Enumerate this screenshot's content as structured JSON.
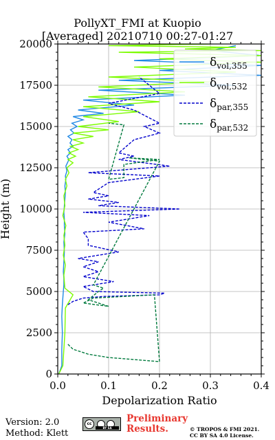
{
  "chart_data": {
    "type": "line",
    "title": "PollyXT_FMI at Kuopio",
    "subtitle": "[Averaged] 20210710 00:27-01:27",
    "xlabel": "Depolarization Ratio",
    "ylabel": "Height (m)",
    "xlim": [
      0,
      0.4
    ],
    "ylim": [
      0,
      20000
    ],
    "xticks": [
      "0.0",
      "0.1",
      "0.2",
      "0.3",
      "0.4"
    ],
    "yticks": [
      "0",
      "2500",
      "5000",
      "7500",
      "10000",
      "12500",
      "15000",
      "17500",
      "20000"
    ],
    "grid": true,
    "legend_placement": "top-right",
    "legend": [
      {
        "base": "δ",
        "sub": "vol,355",
        "color": "#1e88e5",
        "style": "solid"
      },
      {
        "base": "δ",
        "sub": "vol,532",
        "color": "#7cfc00",
        "style": "solid"
      },
      {
        "base": "δ",
        "sub": "par,355",
        "color": "#0000cc",
        "style": "dashed"
      },
      {
        "base": "δ",
        "sub": "par,532",
        "color": "#007a3d",
        "style": "dashed"
      }
    ],
    "series": [
      {
        "name": "δvol,355",
        "color": "#1e88e5",
        "style": "solid",
        "x": [
          0.002,
          0.008,
          0.008,
          0.009,
          0.008,
          0.009,
          0.01,
          0.011,
          0.012,
          0.012,
          0.011,
          0.012,
          0.013,
          0.012,
          0.014,
          0.013,
          0.013,
          0.012,
          0.013,
          0.014,
          0.015,
          0.014,
          0.016,
          0.015,
          0.018,
          0.016,
          0.019,
          0.022,
          0.018,
          0.025,
          0.02,
          0.03,
          0.024,
          0.028,
          0.02,
          0.032,
          0.025,
          0.038,
          0.028,
          0.05,
          0.03,
          0.09,
          0.04,
          0.15,
          0.05,
          0.25,
          0.08,
          0.35,
          0.12,
          0.4,
          0.2,
          0.4,
          0.15,
          0.4,
          0.3,
          0.35
        ],
        "y": [
          0,
          500,
          1500,
          2500,
          3500,
          4200,
          4600,
          5000,
          5400,
          5800,
          6200,
          6800,
          7400,
          8000,
          8500,
          9000,
          9400,
          9800,
          10200,
          10600,
          11000,
          11400,
          11800,
          12000,
          12300,
          12600,
          12800,
          13000,
          13200,
          13400,
          13600,
          13800,
          14000,
          14200,
          14400,
          14600,
          14800,
          15000,
          15200,
          15400,
          15600,
          15800,
          16000,
          16300,
          16600,
          16900,
          17200,
          17500,
          17800,
          18100,
          18400,
          18700,
          19000,
          19300,
          19600,
          19900
        ]
      },
      {
        "name": "δvol,532",
        "color": "#7cfc00",
        "style": "solid",
        "x": [
          0.002,
          0.01,
          0.012,
          0.014,
          0.015,
          0.03,
          0.014,
          0.013,
          0.012,
          0.015,
          0.011,
          0.014,
          0.012,
          0.016,
          0.01,
          0.014,
          0.012,
          0.018,
          0.015,
          0.022,
          0.018,
          0.03,
          0.02,
          0.035,
          0.022,
          0.04,
          0.025,
          0.05,
          0.03,
          0.07,
          0.03,
          0.1,
          0.04,
          0.12,
          0.05,
          0.16,
          0.05,
          0.2,
          0.06,
          0.25,
          0.08,
          0.3,
          0.1,
          0.35,
          0.15,
          0.4,
          0.2,
          0.4,
          0.12,
          0.4,
          0.25,
          0.35,
          0.1,
          0.3
        ],
        "y": [
          0,
          500,
          1500,
          2500,
          4000,
          4800,
          5200,
          5600,
          6000,
          6600,
          7200,
          7800,
          8400,
          9000,
          9600,
          10200,
          10800,
          11400,
          11800,
          12200,
          12500,
          12800,
          13000,
          13200,
          13400,
          13600,
          13800,
          14000,
          14200,
          14400,
          14600,
          14800,
          15000,
          15300,
          15600,
          15900,
          16200,
          16500,
          16800,
          17100,
          17400,
          17700,
          18000,
          18300,
          18600,
          18900,
          19100,
          19300,
          19500,
          19600,
          19700,
          19800,
          19900,
          20000
        ]
      },
      {
        "name": "δpar,355",
        "color": "#0000cc",
        "style": "dashed",
        "x": [
          0.02,
          0.03,
          0.05,
          0.09,
          0.2,
          0.21,
          0.07,
          0.05,
          0.11,
          0.05,
          0.08,
          0.05,
          0.08,
          0.04,
          0.12,
          0.06,
          0.06,
          0.05,
          0.17,
          0.1,
          0.18,
          0.05,
          0.24,
          0.08,
          0.12,
          0.06,
          0.1,
          0.07,
          0.08,
          0.1,
          0.2,
          0.06,
          0.22,
          0.12,
          0.15,
          0.12,
          0.15,
          0.2,
          0.17,
          0.2,
          0.15,
          0.1,
          0.2,
          0.16
        ],
        "y": [
          4200,
          4400,
          4600,
          4700,
          4800,
          4900,
          5000,
          5300,
          5600,
          5900,
          6200,
          6500,
          6800,
          7000,
          7400,
          7800,
          8200,
          8600,
          8800,
          9200,
          9600,
          9800,
          10000,
          10200,
          10400,
          10600,
          10800,
          11000,
          11200,
          11600,
          12000,
          12200,
          12600,
          13000,
          13200,
          13400,
          14200,
          14600,
          15000,
          15200,
          16000,
          16400,
          17000,
          18000
        ]
      },
      {
        "name": "δpar,532",
        "color": "#007a3d",
        "style": "dashed",
        "x": [
          0.02,
          0.03,
          0.06,
          0.1,
          0.16,
          0.2,
          0.19,
          0.07,
          0.05,
          0.1,
          0.06,
          0.08,
          0.09,
          0.07,
          0.2,
          0.14,
          0.2,
          0.13,
          0.13,
          0.1,
          0.13,
          0.1
        ],
        "y": [
          1800,
          1500,
          1200,
          1000,
          850,
          750,
          4800,
          4600,
          4300,
          4100,
          4500,
          5000,
          5200,
          5400,
          12900,
          13100,
          13000,
          12700,
          11900,
          11800,
          15100,
          15200
        ]
      }
    ]
  },
  "footer": {
    "version": "Version: 2.0",
    "method": "Method: Klett",
    "badge_text": "BY    SA",
    "preliminary": [
      "Preliminary",
      "Results."
    ],
    "copyright": [
      "© TROPOS & FMI 2021.",
      "CC BY SA 4.0 License."
    ]
  }
}
